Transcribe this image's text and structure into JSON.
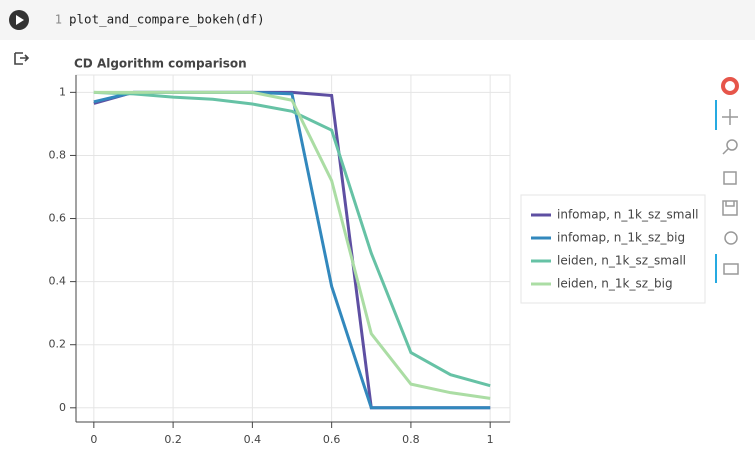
{
  "cell": {
    "number": "1",
    "code": "plot_and_compare_bokeh(df)"
  },
  "chart_data": {
    "type": "line",
    "title": "CD Algorithm comparison",
    "x": [
      0,
      0.1,
      0.2,
      0.3,
      0.4,
      0.5,
      0.6,
      0.7,
      0.8,
      0.9,
      1
    ],
    "series": [
      {
        "name": "infomap, n_1k_sz_small",
        "color": "#5e4fa2",
        "values": [
          0.965,
          1.0,
          1.0,
          1.0,
          1.0,
          1.0,
          0.99,
          0,
          0,
          0,
          0
        ]
      },
      {
        "name": "infomap, n_1k_sz_big",
        "color": "#3288bd",
        "values": [
          0.97,
          1.0,
          1.0,
          1.0,
          1.0,
          0.995,
          0.385,
          0,
          0,
          0,
          0
        ]
      },
      {
        "name": "leiden, n_1k_sz_small",
        "color": "#66c2a5",
        "values": [
          1.0,
          0.995,
          0.985,
          0.978,
          0.963,
          0.94,
          0.88,
          0.49,
          0.175,
          0.105,
          0.07
        ]
      },
      {
        "name": "leiden, n_1k_sz_big",
        "color": "#abdda4",
        "values": [
          1.0,
          1.0,
          1.0,
          1.0,
          1.0,
          0.975,
          0.72,
          0.235,
          0.075,
          0.048,
          0.03
        ]
      }
    ],
    "xlim": [
      -0.045,
      1.05
    ],
    "ylim": [
      -0.045,
      1.055
    ],
    "xticks": [
      0,
      0.2,
      0.4,
      0.6,
      0.8,
      1
    ],
    "yticks": [
      0,
      0.2,
      0.4,
      0.6,
      0.8,
      1
    ],
    "grid": true,
    "legend": "right"
  }
}
